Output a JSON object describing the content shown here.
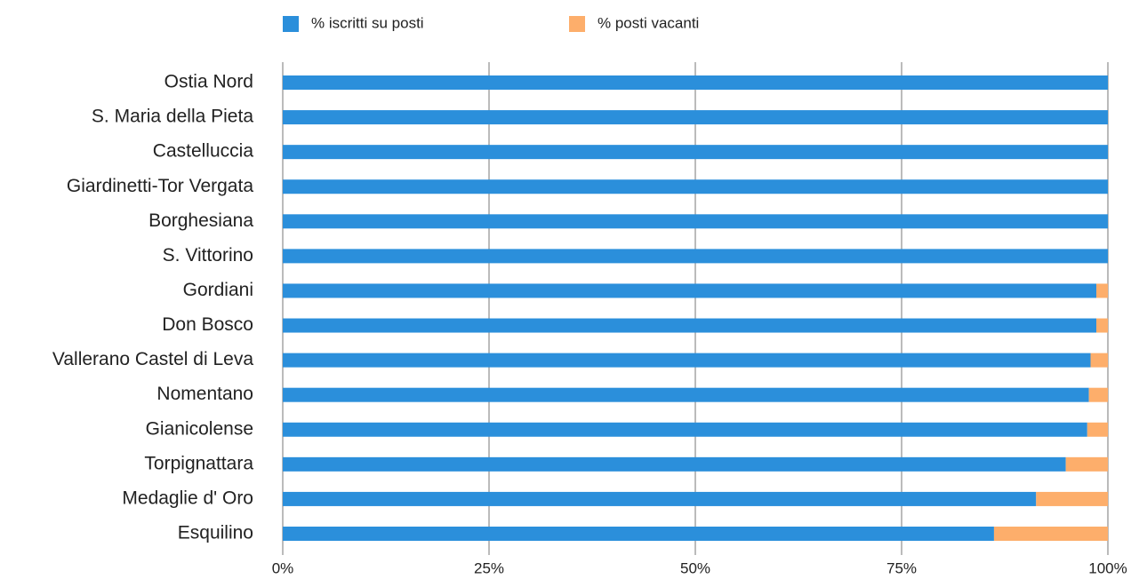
{
  "chart_data": {
    "type": "stacked-barh",
    "categories": [
      "Ostia Nord",
      "S. Maria della Pieta",
      "Castelluccia",
      "Giardinetti-Tor Vergata",
      "Borghesiana",
      "S. Vittorino",
      "Gordiani",
      "Don Bosco",
      "Vallerano Castel di Leva",
      "Nomentano",
      "Gianicolense",
      "Torpignattara",
      "Medaglie d' Oro",
      "Esquilino"
    ],
    "series": [
      {
        "name": "% iscritti su posti",
        "color": "#2b8fdb",
        "values": [
          100,
          100,
          100,
          100,
          100,
          100,
          98.6,
          98.6,
          97.9,
          97.7,
          97.5,
          94.9,
          91.3,
          86.2
        ]
      },
      {
        "name": "% posti vacanti",
        "color": "#fdae6b",
        "values": [
          0,
          0,
          0,
          0,
          0,
          0,
          1.4,
          1.4,
          2.1,
          2.3,
          2.5,
          5.1,
          8.7,
          13.8
        ]
      }
    ],
    "xlim": [
      0,
      100
    ],
    "xticks": [
      {
        "value": 0,
        "label": "0%"
      },
      {
        "value": 25,
        "label": "25%"
      },
      {
        "value": 50,
        "label": "50%"
      },
      {
        "value": 75,
        "label": "75%"
      },
      {
        "value": 100,
        "label": "100%"
      }
    ],
    "grid": true,
    "legend": "top"
  }
}
